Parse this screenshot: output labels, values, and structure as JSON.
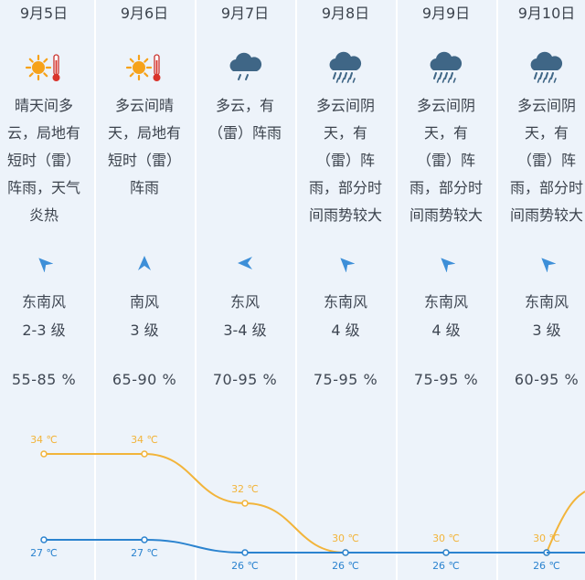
{
  "days": [
    {
      "date": "9月5日",
      "icon": "sunny-hot-icon",
      "desc": "晴天间多\n云，局地有\n短时（雷）\n阵雨，天气\n炎热",
      "wind_dir": "东南风",
      "wind_level": "2-3 级",
      "wind_arrow_deg": 135,
      "humidity": "55-85 %",
      "high": "34 ℃",
      "low": "27 ℃"
    },
    {
      "date": "9月6日",
      "icon": "sunny-hot-icon",
      "desc": "多云间晴\n天，局地有\n短时（雷）\n阵雨",
      "wind_dir": "南风",
      "wind_level": "3 级",
      "wind_arrow_deg": 180,
      "humidity": "65-90 %",
      "high": "34 ℃",
      "low": "27 ℃"
    },
    {
      "date": "9月7日",
      "icon": "shower-icon",
      "desc": "多云，有\n（雷）阵雨",
      "wind_dir": "东风",
      "wind_level": "3-4 级",
      "wind_arrow_deg": 90,
      "humidity": "70-95 %",
      "high": "32 ℃",
      "low": "26 ℃"
    },
    {
      "date": "9月8日",
      "icon": "heavy-rain-icon",
      "desc": "多云间阴\n天，有\n（雷）阵\n雨，部分时\n间雨势较大",
      "wind_dir": "东南风",
      "wind_level": "4 级",
      "wind_arrow_deg": 135,
      "humidity": "75-95 %",
      "high": "30 ℃",
      "low": "26 ℃"
    },
    {
      "date": "9月9日",
      "icon": "heavy-rain-icon",
      "desc": "多云间阴\n天，有\n（雷）阵\n雨，部分时\n间雨势较大",
      "wind_dir": "东南风",
      "wind_level": "4 级",
      "wind_arrow_deg": 135,
      "humidity": "75-95 %",
      "high": "30 ℃",
      "low": "26 ℃"
    },
    {
      "date": "9月10日",
      "icon": "heavy-rain-icon",
      "desc": "多云间阴\n天，有\n（雷）阵\n雨，部分时\n间雨势较大",
      "wind_dir": "东南风",
      "wind_level": "3 级",
      "wind_arrow_deg": 135,
      "humidity": "60-95 %",
      "high": "30 ℃",
      "low": "26 ℃"
    }
  ],
  "chart_data": {
    "type": "line",
    "categories": [
      "9月5日",
      "9月6日",
      "9月7日",
      "9月8日",
      "9月9日",
      "9月10日"
    ],
    "series": [
      {
        "values": [
          34,
          34,
          32,
          30,
          30,
          30
        ]
      },
      {
        "values": [
          27,
          27,
          26,
          26,
          26,
          26
        ]
      }
    ],
    "unit": "℃"
  },
  "colors": {
    "high_line": "#f2b43a",
    "low_line": "#2b83cf",
    "arrow": "#3d8fd8",
    "sun": "#f6a21a",
    "cloud": "#3f6686"
  }
}
